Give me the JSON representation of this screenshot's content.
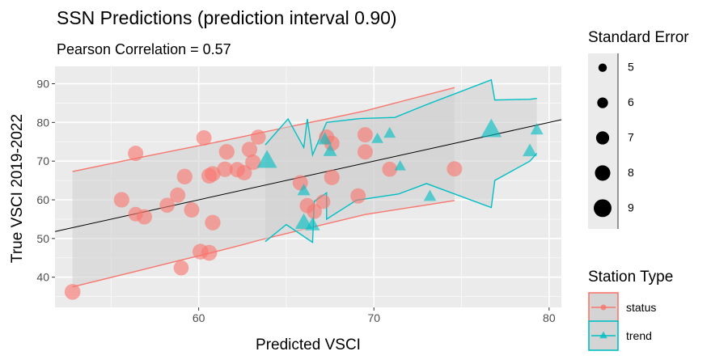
{
  "chart_data": {
    "type": "scatter",
    "title": "SSN Predictions (prediction interval 0.90)",
    "subtitle": "Pearson Correlation = 0.57",
    "xlabel": "Predicted VSCI",
    "ylabel": "True VSCI 2019-2022",
    "xlim": [
      51.8,
      80.7
    ],
    "ylim": [
      32.2,
      94.5
    ],
    "xticks": [
      60,
      70,
      80
    ],
    "yticks": [
      40,
      50,
      60,
      70,
      80,
      90
    ],
    "grid": true,
    "reference_line": {
      "slope": 1,
      "intercept": 0
    },
    "size_legend": {
      "title": "Standard Error",
      "breaks": [
        5,
        6,
        7,
        8,
        9
      ],
      "range": [
        4.5,
        9.5
      ]
    },
    "color_legend": {
      "title": "Station Type",
      "entries": [
        {
          "label": "status",
          "color": "#F8766D",
          "shape": "circle"
        },
        {
          "label": "trend",
          "color": "#00BFC4",
          "shape": "triangle"
        }
      ]
    },
    "series": [
      {
        "name": "status",
        "color": "#F8766D",
        "shape": "circle",
        "points": [
          {
            "x": 52.8,
            "y": 36.2,
            "se": 7.5
          },
          {
            "x": 56.4,
            "y": 72.0,
            "se": 7.3
          },
          {
            "x": 55.6,
            "y": 60.0,
            "se": 7.4
          },
          {
            "x": 56.4,
            "y": 56.3,
            "se": 7.0
          },
          {
            "x": 56.9,
            "y": 55.6,
            "se": 7.3
          },
          {
            "x": 58.2,
            "y": 58.6,
            "se": 7.2
          },
          {
            "x": 58.8,
            "y": 61.2,
            "se": 7.3
          },
          {
            "x": 59.2,
            "y": 66.0,
            "se": 7.4
          },
          {
            "x": 59.6,
            "y": 57.4,
            "se": 7.3
          },
          {
            "x": 59.0,
            "y": 42.4,
            "se": 7.2
          },
          {
            "x": 60.1,
            "y": 46.6,
            "se": 7.5
          },
          {
            "x": 60.6,
            "y": 46.3,
            "se": 7.5
          },
          {
            "x": 60.6,
            "y": 66.2,
            "se": 7.4
          },
          {
            "x": 60.8,
            "y": 66.7,
            "se": 7.4
          },
          {
            "x": 60.8,
            "y": 54.1,
            "se": 7.4
          },
          {
            "x": 60.3,
            "y": 76.0,
            "se": 7.3
          },
          {
            "x": 61.5,
            "y": 67.9,
            "se": 7.4
          },
          {
            "x": 61.6,
            "y": 72.4,
            "se": 7.4
          },
          {
            "x": 62.2,
            "y": 67.8,
            "se": 7.3
          },
          {
            "x": 62.6,
            "y": 67.0,
            "se": 7.3
          },
          {
            "x": 62.9,
            "y": 73.0,
            "se": 7.4
          },
          {
            "x": 63.1,
            "y": 69.7,
            "se": 7.4
          },
          {
            "x": 63.4,
            "y": 76.2,
            "se": 7.2
          },
          {
            "x": 65.8,
            "y": 64.4,
            "se": 7.3
          },
          {
            "x": 66.2,
            "y": 58.5,
            "se": 7.3
          },
          {
            "x": 66.6,
            "y": 57.0,
            "se": 7.2
          },
          {
            "x": 67.1,
            "y": 59.5,
            "se": 7.0
          },
          {
            "x": 67.3,
            "y": 76.2,
            "se": 7.3
          },
          {
            "x": 67.6,
            "y": 74.6,
            "se": 7.3
          },
          {
            "x": 67.6,
            "y": 65.8,
            "se": 7.4
          },
          {
            "x": 69.1,
            "y": 61.0,
            "se": 7.3
          },
          {
            "x": 69.5,
            "y": 72.4,
            "se": 7.3
          },
          {
            "x": 69.5,
            "y": 76.8,
            "se": 7.3
          },
          {
            "x": 70.9,
            "y": 67.9,
            "se": 7.2
          },
          {
            "x": 74.6,
            "y": 68.0,
            "se": 7.3
          }
        ]
      },
      {
        "name": "trend",
        "color": "#00BFC4",
        "shape": "triangle",
        "points": [
          {
            "x": 63.9,
            "y": 70.0,
            "se": 8.6
          },
          {
            "x": 66.0,
            "y": 62.3,
            "se": 6.0
          },
          {
            "x": 66.0,
            "y": 54.0,
            "se": 7.6
          },
          {
            "x": 66.5,
            "y": 53.4,
            "se": 6.7
          },
          {
            "x": 67.2,
            "y": 75.5,
            "se": 6.3
          },
          {
            "x": 67.5,
            "y": 72.5,
            "se": 6.3
          },
          {
            "x": 70.2,
            "y": 75.7,
            "se": 5.6
          },
          {
            "x": 70.9,
            "y": 77.1,
            "se": 5.7
          },
          {
            "x": 71.5,
            "y": 68.6,
            "se": 5.5
          },
          {
            "x": 73.2,
            "y": 60.8,
            "se": 5.9
          },
          {
            "x": 76.7,
            "y": 78.0,
            "se": 8.8
          },
          {
            "x": 78.9,
            "y": 72.5,
            "se": 6.5
          },
          {
            "x": 79.3,
            "y": 78.0,
            "se": 6.0
          }
        ]
      }
    ],
    "intervals": [
      {
        "name": "status",
        "color": "#F8766D",
        "upper": [
          [
            52.8,
            67.3
          ],
          [
            56.4,
            70.7
          ],
          [
            58.8,
            72.9
          ],
          [
            60.8,
            74.7
          ],
          [
            62.6,
            76.4
          ],
          [
            63.4,
            77.2
          ],
          [
            67.1,
            80.7
          ],
          [
            69.5,
            83.0
          ],
          [
            74.6,
            89.0
          ]
        ],
        "lower": [
          [
            52.8,
            37.5
          ],
          [
            56.4,
            41.5
          ],
          [
            58.8,
            44.2
          ],
          [
            60.8,
            46.4
          ],
          [
            62.6,
            48.5
          ],
          [
            63.4,
            49.5
          ],
          [
            67.1,
            53.6
          ],
          [
            69.5,
            56.2
          ],
          [
            74.6,
            59.8
          ]
        ]
      },
      {
        "name": "trend",
        "color": "#00BFC4",
        "upper": [
          [
            63.8,
            74.2
          ],
          [
            65.1,
            80.9
          ],
          [
            66.0,
            73.5
          ],
          [
            66.2,
            80.9
          ],
          [
            66.5,
            71.6
          ],
          [
            67.3,
            80.0
          ],
          [
            69.2,
            81.0
          ],
          [
            71.2,
            81.3
          ],
          [
            73.0,
            84.6
          ],
          [
            76.7,
            91.0
          ],
          [
            76.9,
            85.8
          ],
          [
            78.9,
            86.0
          ],
          [
            79.3,
            86.2
          ]
        ],
        "lower": [
          [
            63.8,
            49.2
          ],
          [
            65.0,
            53.6
          ],
          [
            66.5,
            49.0
          ],
          [
            66.6,
            59.6
          ],
          [
            67.3,
            61.8
          ],
          [
            67.3,
            55.0
          ],
          [
            69.0,
            59.9
          ],
          [
            71.4,
            61.5
          ],
          [
            73.0,
            64.2
          ],
          [
            76.7,
            58.0
          ],
          [
            76.9,
            65.0
          ],
          [
            78.9,
            70.0
          ],
          [
            79.3,
            72.0
          ]
        ]
      }
    ]
  }
}
